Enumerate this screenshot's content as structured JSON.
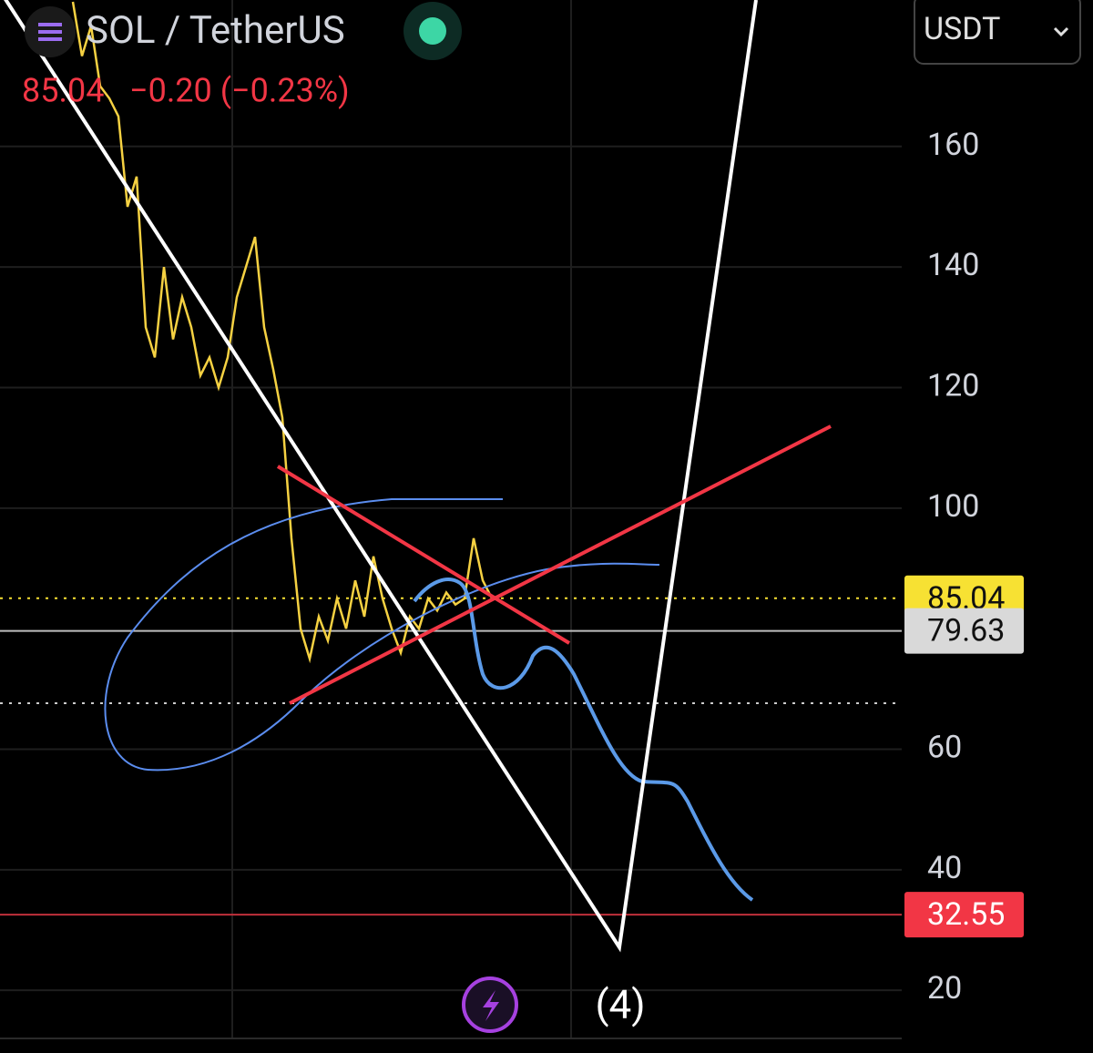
{
  "header": {
    "symbol": "SOL / TetherUS",
    "last_price": "85.04",
    "change": "−0.20 (−0.23%)",
    "currency_button": "USDT"
  },
  "chart_data": {
    "type": "line",
    "x": [
      0,
      1,
      2,
      3,
      4,
      5,
      6,
      7,
      8,
      9,
      10,
      11,
      12,
      13,
      14,
      15,
      16,
      17,
      18,
      19,
      20,
      21,
      22,
      23,
      24,
      25,
      26,
      27,
      28,
      29,
      30,
      31,
      32,
      33,
      34,
      35,
      36,
      37,
      38,
      39,
      40,
      41,
      42,
      43,
      44,
      45,
      46
    ],
    "series": [
      {
        "name": "SOL / TetherUS",
        "color": "#f5d142",
        "values": [
          184,
          175,
          180,
          170,
          168,
          165,
          150,
          155,
          130,
          125,
          140,
          128,
          135,
          130,
          122,
          125,
          120,
          125,
          135,
          140,
          145,
          130,
          123,
          115,
          95,
          80,
          75,
          82,
          78,
          85,
          80,
          88,
          82,
          92,
          85,
          80,
          76,
          82,
          80,
          85,
          83,
          86,
          84,
          85,
          95,
          88,
          85.04
        ]
      }
    ],
    "xlim": [
      -8,
      91
    ],
    "ylim": [
      9.6,
      184.3
    ],
    "yticks": [
      20,
      40,
      60,
      100,
      120,
      140,
      160
    ],
    "grid": true,
    "price_labels": [
      {
        "value": 85.04,
        "color": "#f7e133"
      },
      {
        "value": 79.63,
        "color": "#d9d9d9"
      },
      {
        "value": 32.55,
        "color": "#f23645"
      }
    ],
    "annotation": "(4)"
  }
}
